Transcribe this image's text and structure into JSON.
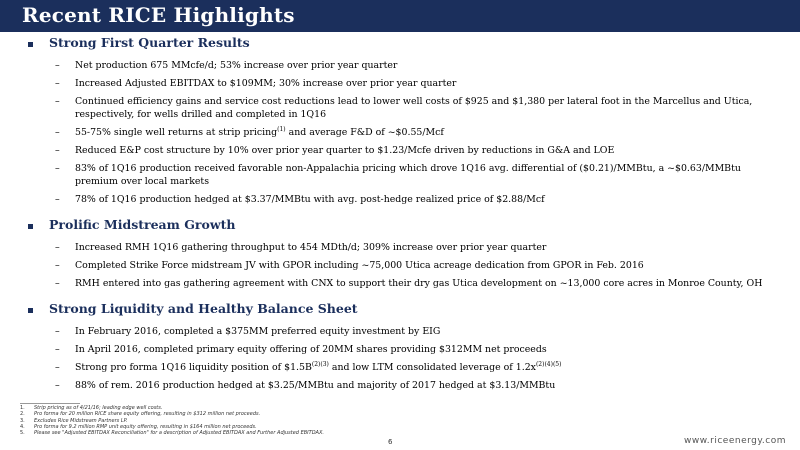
{
  "title": "Recent RICE Highlights",
  "sections": [
    {
      "title": "Strong First Quarter Results",
      "bullets": [
        [
          "Net production 675 MMcfe/d; 53% increase over prior year quarter"
        ],
        [
          "Increased Adjusted EBITDAX to $109MM;  30% increase over prior year quarter"
        ],
        [
          "Continued efficiency gains and service cost reductions lead to lower well costs of $925 and $1,380 per lateral foot in the Marcellus and Utica, respectively, for wells drilled and completed in 1Q16"
        ],
        [
          "55-75% single well returns at strip pricing",
          "(1)",
          " and average F&D of ~$0.55/Mcf"
        ],
        [
          "Reduced E&P cost structure by 10% over prior year quarter to $1.23/Mcfe driven by reductions in G&A and LOE"
        ],
        [
          "83% of 1Q16 production received favorable non-Appalachia pricing which drove 1Q16 avg. differential of ($0.21)/MMBtu, a ~$0.63/MMBtu premium over local markets"
        ],
        [
          "78% of 1Q16 production hedged at $3.37/MMBtu with avg. post-hedge realized price of $2.88/Mcf"
        ]
      ]
    },
    {
      "title": "Prolific Midstream Growth",
      "bullets": [
        [
          "Increased RMH 1Q16 gathering throughput to 454 MDth/d; 309% increase over prior year quarter"
        ],
        [
          "Completed Strike Force midstream JV with GPOR including ~75,000 Utica acreage dedication from GPOR in Feb. 2016"
        ],
        [
          "RMH entered into gas gathering agreement with CNX to support their dry gas Utica development on ~13,000 core acres in Monroe County, OH"
        ]
      ]
    },
    {
      "title": "Strong Liquidity and Healthy Balance Sheet",
      "bullets": [
        [
          "In February 2016, completed a $375MM preferred equity investment by EIG"
        ],
        [
          "In April 2016, completed primary equity offering of 20MM shares providing $312MM net proceeds"
        ],
        [
          "Strong pro forma 1Q16 liquidity position of $1.5B",
          "(2)(3)",
          " and low LTM consolidated leverage of 1.2x",
          "(2)(4)(5)",
          ""
        ],
        [
          "88% of rem. 2016 production hedged at $3.25/MMBtu and majority of 2017 hedged at $3.13/MMBtu"
        ]
      ]
    }
  ],
  "footnotes": [
    {
      "num": "1.",
      "text": "Strip pricing as of 4/21/16; leading edge well costs."
    },
    {
      "num": "2.",
      "text": "Pro forma for 20 million RICE share equity offering, resulting in $312 million net proceeds."
    },
    {
      "num": "3.",
      "text": "Excludes Rice Midstream Partners LP."
    },
    {
      "num": "4.",
      "text": "Pro forma for 9.2 million RMP unit equity offering, resulting in $164 million net proceeds."
    },
    {
      "num": "5.",
      "text": "Please see \"Adjusted EBITDAX Reconciliation\" for a description of Adjusted EBITDAX and Further Adjusted EBITDAX."
    }
  ],
  "page_number": "6",
  "website": "www.riceenergy.com",
  "colors": {
    "brand": "#1b2f5c"
  }
}
